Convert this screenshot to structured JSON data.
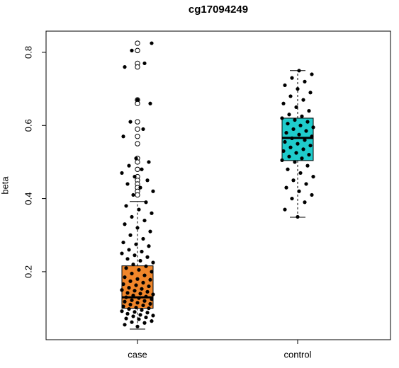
{
  "chart_data": {
    "type": "box",
    "title": "cg17094249",
    "y_label": "beta",
    "categories": [
      "case",
      "control"
    ],
    "boxes": [
      {
        "whisker_low": 0.043,
        "q1": 0.1,
        "median": 0.13,
        "q3": 0.216,
        "whisker_high": 0.392,
        "color": "#f0862a"
      },
      {
        "whisker_low": 0.349,
        "q1": 0.504,
        "median": 0.566,
        "q3": 0.62,
        "whisker_high": 0.75,
        "color": "#1fcccc"
      }
    ],
    "outliers": [
      [
        0.825,
        0.805,
        0.77,
        0.76,
        0.67,
        0.66,
        0.61,
        0.59,
        0.57,
        0.55,
        0.51,
        0.5,
        0.48,
        0.46,
        0.45,
        0.44,
        0.43,
        0.42,
        0.41
      ],
      []
    ],
    "points": [
      [
        0.05,
        0.055,
        0.06,
        0.062,
        0.065,
        0.07,
        0.072,
        0.075,
        0.078,
        0.08,
        0.082,
        0.085,
        0.088,
        0.09,
        0.092,
        0.095,
        0.098,
        0.1,
        0.102,
        0.105,
        0.108,
        0.11,
        0.112,
        0.115,
        0.118,
        0.12,
        0.122,
        0.125,
        0.128,
        0.13,
        0.132,
        0.135,
        0.138,
        0.14,
        0.142,
        0.145,
        0.148,
        0.15,
        0.153,
        0.156,
        0.16,
        0.163,
        0.166,
        0.17,
        0.174,
        0.178,
        0.18,
        0.185,
        0.19,
        0.195,
        0.2,
        0.205,
        0.21,
        0.215,
        0.22,
        0.225,
        0.23,
        0.235,
        0.24,
        0.245,
        0.25,
        0.255,
        0.26,
        0.27,
        0.275,
        0.28,
        0.29,
        0.3,
        0.31,
        0.32,
        0.33,
        0.34,
        0.35,
        0.36,
        0.37,
        0.38,
        0.39,
        0.41,
        0.42,
        0.43,
        0.44,
        0.45,
        0.46,
        0.47,
        0.48,
        0.49,
        0.5,
        0.51,
        0.57,
        0.59,
        0.61,
        0.66,
        0.67,
        0.76,
        0.77,
        0.805,
        0.825
      ],
      [
        0.35,
        0.37,
        0.39,
        0.4,
        0.41,
        0.42,
        0.43,
        0.44,
        0.45,
        0.46,
        0.47,
        0.48,
        0.49,
        0.5,
        0.505,
        0.51,
        0.515,
        0.52,
        0.525,
        0.53,
        0.535,
        0.54,
        0.545,
        0.55,
        0.555,
        0.56,
        0.565,
        0.57,
        0.575,
        0.58,
        0.585,
        0.59,
        0.595,
        0.6,
        0.605,
        0.61,
        0.615,
        0.62,
        0.625,
        0.63,
        0.64,
        0.65,
        0.66,
        0.67,
        0.68,
        0.69,
        0.7,
        0.71,
        0.72,
        0.73,
        0.74,
        0.75
      ]
    ],
    "ylim": [
      0.014,
      0.858
    ],
    "yticks": [
      0.2,
      0.4,
      0.6,
      0.8
    ]
  }
}
